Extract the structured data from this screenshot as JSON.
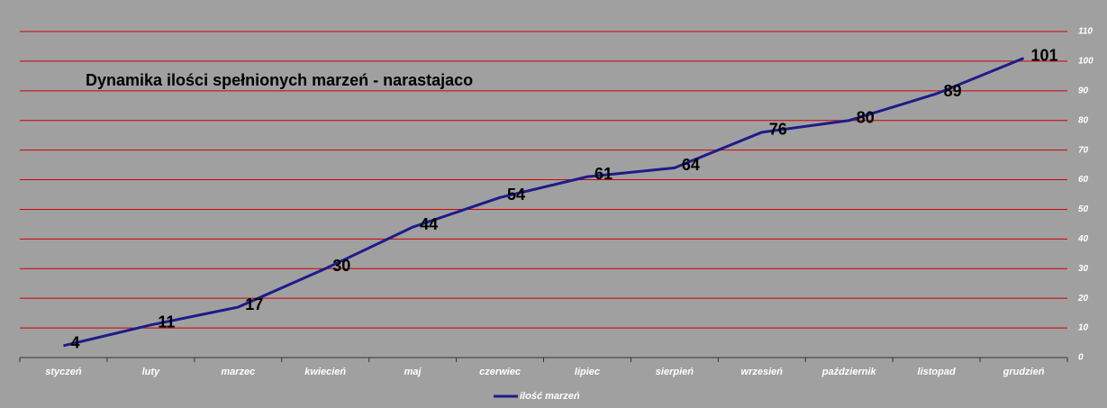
{
  "chart_data": {
    "type": "line",
    "title": "Dynamika ilości spełnionych marzeń - narastajaco",
    "categories": [
      "styczeń",
      "luty",
      "marzec",
      "kwiecień",
      "maj",
      "czerwiec",
      "lipiec",
      "sierpień",
      "wrzesień",
      "październik",
      "listopad",
      "grudzień"
    ],
    "series": [
      {
        "name": "ilość marzeń",
        "color": "#1c1c8a",
        "values": [
          4,
          11,
          17,
          30,
          44,
          54,
          61,
          64,
          76,
          80,
          89,
          101
        ]
      }
    ],
    "ylim": [
      0,
      110
    ],
    "yticks": [
      0,
      10,
      20,
      30,
      40,
      50,
      60,
      70,
      80,
      90,
      100,
      110
    ],
    "grid": true,
    "grid_color": "#cc0000",
    "background": "#a0a0a0",
    "legend": "bottom"
  }
}
